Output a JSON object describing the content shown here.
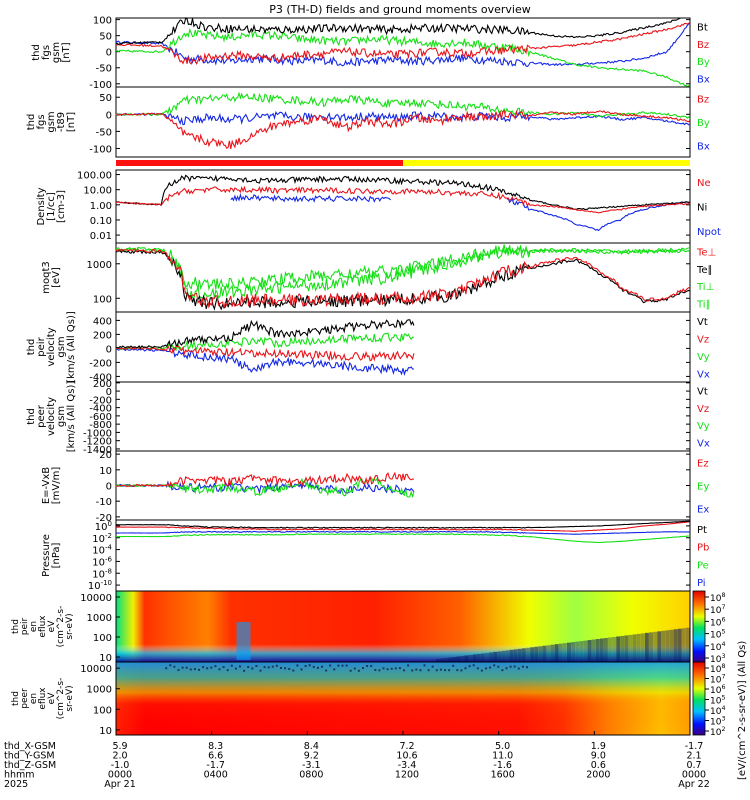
{
  "figure_title": "P3 (TH-D) fields and ground moments overview",
  "colors": {
    "black": "#000000",
    "red": "#e8141a",
    "green": "#15e015",
    "blue": "#1428e6",
    "bar_red": "#ff1010",
    "bar_yellow": "#ffff00"
  },
  "chart_data": [
    {
      "type": "line",
      "ylabel": [
        "thd",
        "fgs",
        "gsm",
        "[nT]"
      ],
      "ylim": [
        -110,
        105
      ],
      "yticks": [
        -100,
        -50,
        0,
        50,
        100
      ],
      "legend": [
        {
          "name": "Bt",
          "color": "black"
        },
        {
          "name": "Bz",
          "color": "red"
        },
        {
          "name": "By",
          "color": "green"
        },
        {
          "name": "Bx",
          "color": "blue"
        }
      ],
      "series_levels": {
        "Bt": [
          25,
          28,
          30,
          100,
          75,
          72,
          70,
          68,
          70,
          72,
          75,
          70,
          68,
          72,
          74,
          72,
          70,
          68,
          60,
          50,
          45,
          50,
          60,
          75,
          90,
          115
        ],
        "Bz": [
          22,
          20,
          18,
          -30,
          -20,
          -10,
          -15,
          -20,
          -10,
          -5,
          0,
          -5,
          -10,
          -5,
          0,
          -5,
          0,
          5,
          10,
          15,
          20,
          30,
          40,
          55,
          70,
          90
        ],
        "By": [
          2,
          1,
          0,
          60,
          50,
          45,
          55,
          50,
          40,
          35,
          30,
          40,
          35,
          30,
          25,
          30,
          20,
          15,
          0,
          -20,
          -40,
          -50,
          -55,
          -60,
          -80,
          -110
        ],
        "Bx": [
          30,
          28,
          25,
          -20,
          -25,
          -30,
          -20,
          -25,
          -30,
          -25,
          -35,
          -30,
          -25,
          -30,
          -25,
          -20,
          -25,
          -30,
          -35,
          -40,
          -40,
          -35,
          -30,
          -20,
          0,
          90
        ]
      }
    },
    {
      "type": "line",
      "ylabel": [
        "thd",
        "fgs",
        "gsm",
        "-t89",
        "[nT]"
      ],
      "ylim": [
        -125,
        80
      ],
      "yticks": [
        -100,
        -50,
        0,
        50
      ],
      "legend": [
        {
          "name": "Bz",
          "color": "red"
        },
        {
          "name": "By",
          "color": "green"
        },
        {
          "name": "Bx",
          "color": "blue"
        }
      ],
      "series_levels": {
        "Bz": [
          0,
          0,
          2,
          -60,
          -80,
          -90,
          -60,
          -30,
          -20,
          -10,
          -40,
          -20,
          -30,
          -10,
          -20,
          -5,
          -10,
          0,
          -5,
          5,
          0,
          10,
          0,
          -5,
          -10,
          -20
        ],
        "By": [
          0,
          0,
          0,
          40,
          45,
          50,
          50,
          45,
          40,
          35,
          45,
          40,
          30,
          35,
          30,
          25,
          20,
          10,
          5,
          0,
          5,
          -5,
          0,
          5,
          0,
          -10
        ],
        "Bx": [
          0,
          0,
          0,
          -20,
          -10,
          -15,
          -10,
          -5,
          -10,
          -5,
          -10,
          -5,
          -10,
          -5,
          -5,
          -10,
          -5,
          -10,
          -5,
          -15,
          -10,
          -5,
          -15,
          -10,
          -20,
          -30
        ]
      }
    },
    {
      "type": "line",
      "ylabel": [
        "Density",
        "[1/cc]",
        "[cm-3]"
      ],
      "ylim_log": [
        0.003,
        200
      ],
      "yticks": [
        "0.01",
        "0.10",
        "1.00",
        "10.00",
        "100.00"
      ],
      "legend": [
        {
          "name": "Ne",
          "color": "red"
        },
        {
          "name": "Ni",
          "color": "black"
        },
        {
          "name": "Npot",
          "color": "blue"
        }
      ],
      "series_levels": {
        "Ne": [
          1.5,
          1.2,
          1,
          8,
          10,
          10,
          10,
          9,
          9,
          9,
          8.5,
          8,
          8,
          7.5,
          7,
          6,
          5,
          3,
          1,
          0.8,
          0.5,
          0.3,
          0.5,
          0.8,
          1,
          1.2
        ],
        "Ni": [
          1.5,
          1.2,
          1,
          60,
          50,
          60,
          40,
          40,
          45,
          50,
          50,
          45,
          40,
          35,
          30,
          25,
          15,
          6,
          2,
          1,
          0.5,
          0.6,
          0.8,
          1,
          1.2,
          1.5
        ],
        "Npot": [
          null,
          null,
          null,
          null,
          null,
          3,
          3,
          2.5,
          2.5,
          2.5,
          2.5,
          2.5,
          2.5,
          null,
          null,
          null,
          null,
          2,
          0.5,
          0.2,
          0.05,
          0.02,
          0.1,
          0.5,
          1,
          1.5
        ]
      }
    },
    {
      "type": "line",
      "ylabel": [
        "moqt3",
        "[eV]"
      ],
      "ylim_log": [
        40,
        4000
      ],
      "yticks": [
        "100",
        "1000"
      ],
      "legend": [
        {
          "name": "Te⊥",
          "color": "red"
        },
        {
          "name": "Te∥",
          "color": "black"
        },
        {
          "name": "Ti⊥",
          "color": "green"
        },
        {
          "name": "Ti∥",
          "color": "green"
        }
      ],
      "series_levels": {
        "Te⊥": [
          2500,
          2400,
          2300,
          120,
          80,
          80,
          90,
          85,
          90,
          90,
          95,
          95,
          100,
          110,
          120,
          150,
          300,
          600,
          800,
          1200,
          1500,
          600,
          200,
          90,
          100,
          200
        ],
        "Te∥": [
          2300,
          2200,
          2100,
          100,
          70,
          70,
          80,
          75,
          80,
          80,
          85,
          85,
          90,
          100,
          110,
          130,
          250,
          500,
          700,
          1000,
          1300,
          500,
          180,
          80,
          90,
          180
        ],
        "Ti⊥": [
          2800,
          2700,
          2600,
          300,
          250,
          250,
          300,
          350,
          400,
          450,
          500,
          550,
          600,
          800,
          1000,
          1500,
          2000,
          2500,
          2500,
          2500,
          2500,
          2400,
          2300,
          2400,
          2500,
          2600
        ],
        "Ti∥": [
          2600,
          2500,
          2400,
          150,
          140,
          150,
          180,
          200,
          230,
          260,
          300,
          350,
          400,
          600,
          800,
          1200,
          1800,
          2200,
          2300,
          2300,
          2300,
          2200,
          2100,
          2200,
          2300,
          2400
        ]
      }
    },
    {
      "type": "line",
      "ylabel": [
        "thd",
        "peir",
        "velocity",
        "gsm",
        "[km/s (All Qs)]"
      ],
      "ylim": [
        -480,
        520
      ],
      "yticks": [
        -400,
        -200,
        0,
        200,
        400
      ],
      "legend": [
        {
          "name": "Vt",
          "color": "black"
        },
        {
          "name": "Vz",
          "color": "red"
        },
        {
          "name": "Vy",
          "color": "green"
        },
        {
          "name": "Vx",
          "color": "blue"
        }
      ],
      "series_levels": {
        "Vt": [
          20,
          20,
          30,
          100,
          130,
          160,
          350,
          200,
          230,
          250,
          300,
          330,
          350,
          380,
          null,
          null,
          null,
          null,
          null,
          null,
          null,
          null,
          null,
          null,
          null,
          null
        ],
        "Vz": [
          5,
          0,
          -10,
          -30,
          -50,
          -60,
          -80,
          -70,
          -80,
          -100,
          -110,
          -120,
          -110,
          -100,
          null,
          null,
          null,
          null,
          null,
          null,
          null,
          null,
          null,
          null,
          null,
          null
        ],
        "Vy": [
          0,
          0,
          0,
          40,
          60,
          70,
          120,
          80,
          100,
          120,
          140,
          150,
          160,
          170,
          null,
          null,
          null,
          null,
          null,
          null,
          null,
          null,
          null,
          null,
          null,
          null
        ],
        "Vx": [
          -10,
          -20,
          -30,
          -80,
          -120,
          -150,
          -330,
          -180,
          -200,
          -220,
          -250,
          -280,
          -300,
          -320,
          null,
          null,
          null,
          null,
          null,
          null,
          null,
          null,
          null,
          null,
          null,
          null
        ]
      }
    },
    {
      "type": "line",
      "ylabel": [
        "thd",
        "peer",
        "velocity",
        "gsm",
        "[km/s (All Qs)]"
      ],
      "ylim": [
        -1450,
        220
      ],
      "yticks": [
        -1400,
        -1200,
        -1000,
        -800,
        -600,
        -400,
        -200,
        0,
        200
      ],
      "legend": [
        {
          "name": "Vt",
          "color": "black"
        },
        {
          "name": "Vz",
          "color": "red"
        },
        {
          "name": "Vy",
          "color": "green"
        },
        {
          "name": "Vx",
          "color": "blue"
        }
      ]
    },
    {
      "type": "line",
      "ylabel": [
        "E=-VxB",
        "[mV/m]"
      ],
      "ylim": [
        -22,
        22
      ],
      "yticks": [
        -20,
        -10,
        0,
        10,
        20
      ],
      "legend": [
        {
          "name": "Ez",
          "color": "red"
        },
        {
          "name": "Ey",
          "color": "green"
        },
        {
          "name": "Ex",
          "color": "blue"
        }
      ],
      "series_levels": {
        "Ez": [
          0,
          0,
          0,
          3,
          4,
          2,
          5,
          3,
          2,
          4,
          5,
          3,
          6,
          4,
          null,
          null,
          null,
          null,
          null,
          null,
          null,
          null,
          null,
          null,
          null,
          null
        ],
        "Ey": [
          0,
          0,
          0,
          -2,
          -3,
          -1,
          -4,
          -2,
          2,
          -3,
          -4,
          5,
          -2,
          -6,
          null,
          null,
          null,
          null,
          null,
          null,
          null,
          null,
          null,
          null,
          null,
          null
        ],
        "Ex": [
          0,
          0,
          0,
          -1,
          -2,
          0,
          -3,
          -1,
          1,
          -2,
          -3,
          -1,
          -2,
          -4,
          null,
          null,
          null,
          null,
          null,
          null,
          null,
          null,
          null,
          null,
          null,
          null
        ]
      }
    },
    {
      "type": "line",
      "ylabel": [
        "Pressure",
        "[nPa]"
      ],
      "ylim_log_exp": [
        -11,
        1
      ],
      "yticks": [
        "10^-10",
        "10^-8",
        "10^-6",
        "10^-4",
        "10^-2",
        "10^0"
      ],
      "legend": [
        {
          "name": "Pt",
          "color": "black"
        },
        {
          "name": "Pb",
          "color": "red"
        },
        {
          "name": "Pe",
          "color": "green"
        },
        {
          "name": "Pi",
          "color": "blue"
        }
      ],
      "series_levels_log": {
        "Pt": [
          0.2,
          0.2,
          0.2,
          0,
          -0.2,
          -0.2,
          -0.3,
          -0.3,
          -0.3,
          -0.3,
          -0.3,
          -0.3,
          -0.3,
          -0.3,
          -0.3,
          -0.3,
          -0.3,
          -0.3,
          -0.3,
          -0.2,
          -0.1,
          0,
          0.2,
          0.4,
          0.6,
          0.8
        ],
        "Pb": [
          -0.2,
          -0.2,
          -0.2,
          -0.3,
          -0.4,
          -0.5,
          -0.5,
          -0.6,
          -0.6,
          -0.6,
          -0.6,
          -0.6,
          -0.6,
          -0.6,
          -0.6,
          -0.6,
          -0.6,
          -0.6,
          -0.7,
          -0.8,
          -0.9,
          -0.7,
          -0.5,
          0,
          0.3,
          0.7
        ],
        "Pe": [
          -1.8,
          -1.8,
          -1.8,
          -1.6,
          -1.5,
          -1.5,
          -1.5,
          -1.5,
          -1.4,
          -1.4,
          -1.4,
          -1.4,
          -1.4,
          -1.4,
          -1.4,
          -1.4,
          -1.5,
          -1.6,
          -1.8,
          -2.2,
          -2.6,
          -2.8,
          -2.6,
          -2.3,
          -2,
          -1.7
        ],
        "Pi": [
          -1.2,
          -1.2,
          -1.2,
          -1.0,
          -1.0,
          -1.0,
          -1.0,
          -1.0,
          -1.0,
          -1.0,
          -1.0,
          -1.0,
          -1.0,
          -1.0,
          -1.0,
          -1.0,
          -1.0,
          -1.1,
          -1.2,
          -1.3,
          -1.4,
          -1.3,
          -1.2,
          -1.1,
          -1.0,
          -1.0
        ]
      }
    },
    {
      "type": "heatmap",
      "ylabel": [
        "thd",
        "peir",
        "en",
        "eflux",
        "eV",
        "(cm^2-s-",
        "sr-eV)"
      ],
      "yticks": [
        "10",
        "100",
        "1000",
        "10000"
      ],
      "colorbar_ticks": [
        "10^3",
        "10^4",
        "10^5",
        "10^6",
        "10^7",
        "10^8"
      ]
    },
    {
      "type": "heatmap",
      "ylabel": [
        "thd",
        "peer",
        "en",
        "eflux",
        "eV",
        "(cm^2-s-",
        "sr-eV)"
      ],
      "yticks": [
        "10",
        "100",
        "1000",
        "10000"
      ],
      "colorbar_ticks": [
        "10^2",
        "10^3",
        "10^4",
        "10^5",
        "10^6",
        "10^7",
        "10^8"
      ],
      "colorbar_label": "[eV/(cm^2-s-sr-eV)] (All Qs)"
    }
  ],
  "bar_segments": [
    {
      "from": 0,
      "to": 0.5,
      "color": "bar_red"
    },
    {
      "from": 0.5,
      "to": 1,
      "color": "bar_yellow"
    }
  ],
  "x_axis": {
    "row_labels": [
      "thd_X-GSM",
      "thd_Y-GSM",
      "thd_Z-GSM",
      "hhmm",
      "2025"
    ],
    "columns": [
      [
        "5.9",
        "2.0",
        "-1.0",
        "0000",
        "Apr 21"
      ],
      [
        "8.3",
        "6.6",
        "-1.7",
        "0400",
        ""
      ],
      [
        "8.4",
        "9.2",
        "-3.1",
        "0800",
        ""
      ],
      [
        "7.2",
        "10.6",
        "-3.4",
        "1200",
        ""
      ],
      [
        "5.0",
        "11.0",
        "-1.6",
        "1600",
        ""
      ],
      [
        "1.9",
        "9.0",
        "0.6",
        "2000",
        ""
      ],
      [
        "-1.7",
        "2.1",
        "0.7",
        "0000",
        "Apr 22"
      ]
    ]
  }
}
